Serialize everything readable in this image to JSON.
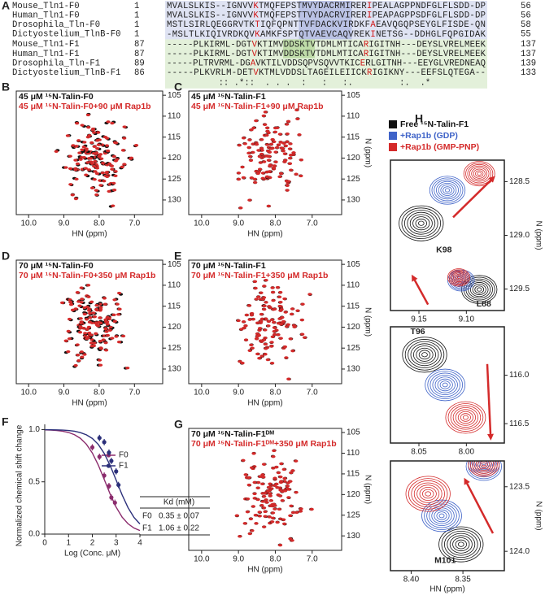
{
  "panel_a": {
    "letter": "A",
    "rows": [
      {
        "name": "Mouse_Tln1-F0",
        "start": 1,
        "sequence": "MVALSLKIS--IGNVVKTMQFEPSTMVYDACRMIRERIPEALAGPPNDFGLFLSDD-DP",
        "end": 56
      },
      {
        "name": "Human_Tln1-F0",
        "start": 1,
        "sequence": "MVALSLKIS--IGNVVKTMQFEPSTTVYDACRVIRERIPEAPAGPPSDFGLFLSDD-DP",
        "end": 56
      },
      {
        "name": "Drosophila_Tln-F0",
        "start": 1,
        "sequence": "MSTLSIRLQEGGRVTKTIQFQPNTTVFDACKVIRDKFAEAVQGQPSEYGLFISDE-QN",
        "end": 58
      },
      {
        "name": "Dictyostelium_TlnB-F0",
        "start": 1,
        "sequence": "-MSLTLKIQIVRDKQVKAMKFSPTQTVAEVCAQVREKINETSG--DDHGLFQPGIDAK",
        "end": 55
      },
      {
        "name": "Mouse_Tln1-F1",
        "start": 87,
        "sequence": "-----PLKIRML-DGTVKTIMVDDSKTVTDMLMTICARIGITNH---DEYSLVRELMEEK",
        "end": 137
      },
      {
        "name": "Human_Tln1-F1",
        "start": 87,
        "sequence": "-----PLKIRML-DGTVKTIMVDDSKTVTDMLMTICARIGITNH---DEYSLVRELMEEK",
        "end": 137
      },
      {
        "name": "Drosophila_Tln-F1",
        "start": 89,
        "sequence": "-----PLTRVRML-DGAVKTILVDDSQPVSQVVTKICERLGITNH---EEYGLVREDNEAQ",
        "end": 139
      },
      {
        "name": "Dictyostelium_TlnB-F1",
        "start": 86,
        "sequence": "-----PLKVRLM-DETVKTMLVDDSLTAGEILEIICKRIGIKNY---EEFSLQTEGA--",
        "end": 133
      }
    ],
    "conservation": "          :: .*::  . . .  :   :   :.         :.  .*"
  },
  "spectra": [
    {
      "letter": "B",
      "label_black": "45 μM ¹⁵N-Talin-F0",
      "label_red": "45 μM ¹⁵N-Talin-F0+90 μM Rap1b",
      "x_label": "HN (ppm)",
      "xlim": [
        10.35,
        6.2
      ],
      "ylim": [
        104,
        133.5
      ],
      "xticks": [
        {
          "value": 10,
          "label": "10.0"
        },
        {
          "value": 9,
          "label": "9.0"
        },
        {
          "value": 8,
          "label": "8.0"
        },
        {
          "value": 7,
          "label": "7.0"
        }
      ],
      "yticks": [
        105,
        110,
        115,
        120,
        125,
        130
      ]
    },
    {
      "letter": "C",
      "label_black": "45 μM ¹⁵N-Talin-F1",
      "label_red": "45 μM ¹⁵N-Talin-F1+90 μM Rap1b",
      "x_label": "HN (ppm)",
      "y_label": "N (ppm)",
      "xlim": [
        10.35,
        6.2
      ],
      "ylim": [
        104,
        133.5
      ],
      "xticks": [
        {
          "value": 10,
          "label": "10.0"
        },
        {
          "value": 9,
          "label": "9.0"
        },
        {
          "value": 8,
          "label": "8.0"
        },
        {
          "value": 7,
          "label": "7.0"
        }
      ],
      "yticks": [
        105,
        110,
        115,
        120,
        125,
        130
      ]
    },
    {
      "letter": "D",
      "label_black": "70 μM ¹⁵N-Talin-F0",
      "label_red": "70 μM ¹⁵N-Talin-F0+350 μM Rap1b",
      "x_label": "HN (ppm)",
      "xlim": [
        10.35,
        6.2
      ],
      "ylim": [
        104,
        133.5
      ],
      "xticks": [
        {
          "value": 10,
          "label": "10.0"
        },
        {
          "value": 9,
          "label": "9.0"
        },
        {
          "value": 8,
          "label": "8.0"
        },
        {
          "value": 7,
          "label": "7.0"
        }
      ],
      "yticks": [
        105,
        110,
        115,
        120,
        125,
        130
      ]
    },
    {
      "letter": "E",
      "label_black": "70 μM ¹⁵N-Talin-F1",
      "label_red": "70 μM ¹⁵N-Talin-F1+350 μM Rap1b",
      "x_label": "HN (ppm)",
      "y_label": "N (ppm)",
      "xlim": [
        10.35,
        6.2
      ],
      "ylim": [
        104,
        133.5
      ],
      "xticks": [
        {
          "value": 10,
          "label": "10.0"
        },
        {
          "value": 9,
          "label": "9.0"
        },
        {
          "value": 8,
          "label": "8.0"
        },
        {
          "value": 7,
          "label": "7.0"
        }
      ],
      "yticks": [
        105,
        110,
        115,
        120,
        125,
        130
      ]
    },
    {
      "letter": "G",
      "label_black": "70 μM ¹⁵N-Talin-F1ᴰᴹ",
      "label_red": "70 μM ¹⁵N-Talin-F1ᴰᴹ+350 μM Rap1b",
      "x_label": "HN (ppm)",
      "y_label": "N (ppm)",
      "xlim": [
        10.35,
        6.2
      ],
      "ylim": [
        104,
        133.5
      ],
      "xticks": [
        {
          "value": 10,
          "label": "10.0"
        },
        {
          "value": 9,
          "label": "9.0"
        },
        {
          "value": 8,
          "label": "8.0"
        },
        {
          "value": 7,
          "label": "7.0"
        }
      ],
      "yticks": [
        105,
        110,
        115,
        120,
        125,
        130
      ]
    }
  ],
  "chart_data": {
    "type": "scatter",
    "letter": "F",
    "x_label": "Log (Conc. μM)",
    "y_label": "Normalized chemical shift change",
    "xlim": [
      0,
      4
    ],
    "ylim": [
      0,
      1.05
    ],
    "xticks": [
      0,
      1,
      2,
      3,
      4
    ],
    "yticks": [
      {
        "value": 0,
        "label": "0.0"
      },
      {
        "value": 0.5,
        "label": "0.5"
      },
      {
        "value": 1,
        "label": "1.0"
      }
    ],
    "series": [
      {
        "name": "F0",
        "color": "#8b2c6d",
        "x": [
          2.0,
          2.3,
          2.5,
          2.7,
          2.8,
          2.95
        ],
        "values": [
          0.83,
          0.74,
          0.56,
          0.46,
          0.35,
          0.3
        ],
        "errors": [
          0.03,
          0.03,
          0.03,
          0.03,
          0.03,
          0.03
        ],
        "fit_x": [
          0,
          0.25,
          0.5,
          0.75,
          1,
          1.25,
          1.5,
          1.75,
          2,
          2.25,
          2.5,
          2.75,
          3,
          3.25,
          3.5,
          3.75,
          4
        ],
        "fit": [
          0.997,
          0.995,
          0.991,
          0.984,
          0.972,
          0.951,
          0.916,
          0.86,
          0.776,
          0.661,
          0.523,
          0.382,
          0.258,
          0.163,
          0.099,
          0.058,
          0.034
        ]
      },
      {
        "name": "F1",
        "color": "#2b2f7a",
        "x": [
          2.3,
          2.5,
          2.7,
          2.8,
          3.0,
          3.1
        ],
        "values": [
          0.92,
          0.88,
          0.78,
          0.7,
          0.6,
          0.47
        ],
        "errors": [
          0.03,
          0.03,
          0.03,
          0.03,
          0.03,
          0.03
        ],
        "fit_x": [
          0,
          0.25,
          0.5,
          0.75,
          1,
          1.25,
          1.5,
          1.75,
          2,
          2.25,
          2.5,
          2.75,
          3,
          3.25,
          3.5,
          3.75,
          4
        ],
        "fit": [
          0.999,
          0.998,
          0.997,
          0.995,
          0.991,
          0.984,
          0.971,
          0.95,
          0.915,
          0.858,
          0.772,
          0.656,
          0.517,
          0.376,
          0.253,
          0.16,
          0.097
        ]
      }
    ],
    "table": {
      "header": "Kd (mM)",
      "rows": [
        [
          "F0",
          "0.35 ± 0.07"
        ],
        [
          "F1",
          "1.06 ± 0.22"
        ]
      ]
    }
  },
  "panel_h": {
    "letter": "H",
    "legend": [
      {
        "name": "Free ¹⁵N-Talin-F1",
        "color": "#111111"
      },
      {
        "name": "+Rap1b (GDP)",
        "color": "#3f63c8"
      },
      {
        "name": "+Rap1b (GMP-PNP)",
        "color": "#d42a2a"
      }
    ],
    "boxes": [
      {
        "xlim": [
          9.18,
          9.06
        ],
        "ylim": [
          128.3,
          129.7
        ],
        "xticks": [
          9.15,
          {
            "value": 9.1,
            "label": "9.10"
          }
        ],
        "yticks": [
          128.5,
          {
            "value": 129,
            "label": "129.0"
          },
          129.5
        ],
        "peak_labels": [
          "K98",
          "L88"
        ],
        "y_label": "N (ppm)"
      },
      {
        "xlim": [
          8.08,
          7.96
        ],
        "ylim": [
          115.5,
          116.7
        ],
        "xticks": [
          8.05,
          {
            "value": 8,
            "label": "8.00"
          }
        ],
        "yticks": [
          {
            "value": 116,
            "label": "116.0"
          },
          116.5
        ],
        "peak_labels": [
          "T96"
        ]
      },
      {
        "xlim": [
          8.42,
          8.31
        ],
        "ylim": [
          123.3,
          124.15
        ],
        "xticks": [
          {
            "value": 8.4,
            "label": "8.40"
          },
          8.35
        ],
        "yticks": [
          123.5,
          {
            "value": 124,
            "label": "124.0"
          }
        ],
        "peak_labels": [
          "M101"
        ],
        "x_label": "HN (ppm)",
        "y_label": "N (ppm)"
      }
    ]
  }
}
